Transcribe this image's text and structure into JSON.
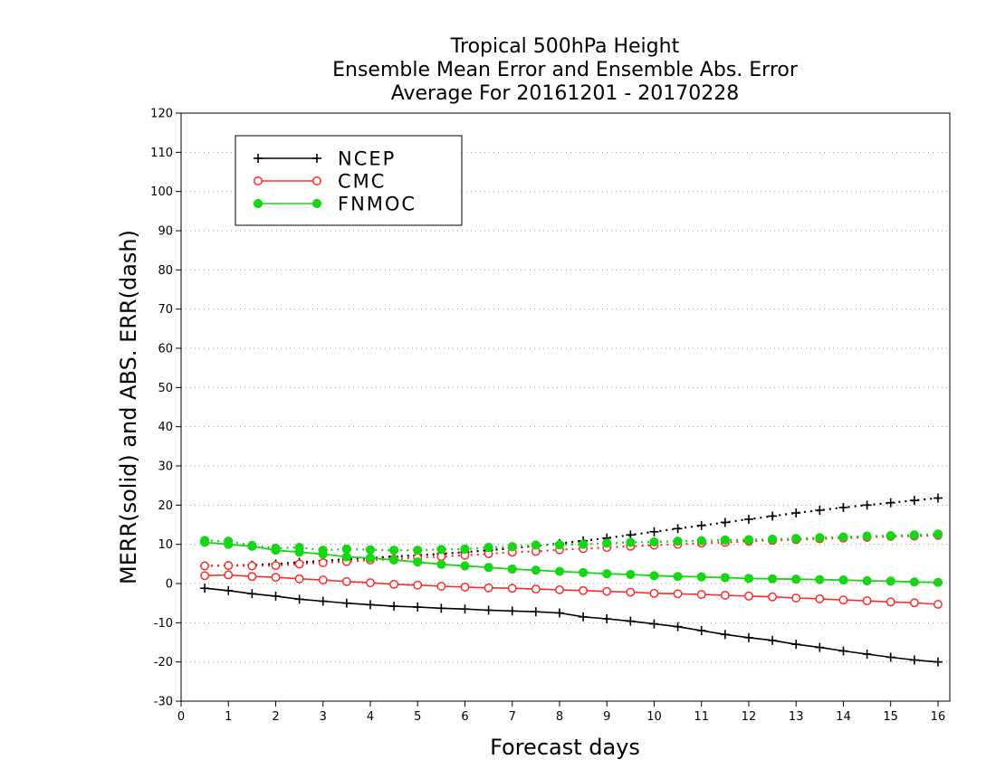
{
  "chart_data": {
    "type": "line",
    "title_lines": [
      "Tropical 500hPa Height",
      "Ensemble Mean Error and Ensemble Abs. Error",
      "Average For 20161201 - 20170228"
    ],
    "xlabel": "Forecast days",
    "ylabel": "MERR(solid) and ABS. ERR(dash)",
    "xlim": [
      0,
      16.25
    ],
    "ylim": [
      -30,
      120
    ],
    "xticks": [
      0,
      1,
      2,
      3,
      4,
      5,
      6,
      7,
      8,
      9,
      10,
      11,
      12,
      13,
      14,
      15,
      16
    ],
    "yticks": [
      -30,
      -20,
      -10,
      0,
      10,
      20,
      30,
      40,
      50,
      60,
      70,
      80,
      90,
      100,
      110,
      120
    ],
    "grid": "horizontal dotted",
    "legend_position": "top-left",
    "x": [
      0.5,
      1,
      1.5,
      2,
      2.5,
      3,
      3.5,
      4,
      4.5,
      5,
      5.5,
      6,
      6.5,
      7,
      7.5,
      8,
      8.5,
      9,
      9.5,
      10,
      10.5,
      11,
      11.5,
      12,
      12.5,
      13,
      13.5,
      14,
      14.5,
      15,
      15.5,
      16
    ],
    "series": [
      {
        "name": "NCEP",
        "color": "#000000",
        "marker": "plus",
        "merr": [
          -1.2,
          -1.8,
          -2.6,
          -3.2,
          -4.0,
          -4.5,
          -5.0,
          -5.4,
          -5.8,
          -6.0,
          -6.3,
          -6.5,
          -6.8,
          -7.0,
          -7.2,
          -7.5,
          -8.5,
          -9.0,
          -9.6,
          -10.3,
          -11.0,
          -12.0,
          -13.0,
          -13.8,
          -14.5,
          -15.5,
          -16.3,
          -17.2,
          -18.0,
          -18.8,
          -19.5,
          -20.0
        ],
        "abs_err": [
          4.5,
          4.6,
          4.7,
          5.0,
          5.4,
          5.8,
          6.2,
          6.5,
          6.9,
          7.2,
          7.6,
          8.0,
          8.5,
          9.0,
          9.6,
          10.2,
          10.9,
          11.6,
          12.4,
          13.2,
          14.0,
          14.8,
          15.6,
          16.4,
          17.2,
          18.0,
          18.7,
          19.4,
          20.0,
          20.6,
          21.2,
          21.8
        ]
      },
      {
        "name": "CMC",
        "color": "#ff2a2a",
        "marker": "open-circle",
        "merr": [
          2.0,
          2.2,
          1.8,
          1.6,
          1.2,
          0.9,
          0.5,
          0.2,
          -0.2,
          -0.4,
          -0.7,
          -0.9,
          -1.1,
          -1.2,
          -1.4,
          -1.6,
          -1.8,
          -2.0,
          -2.2,
          -2.5,
          -2.6,
          -2.8,
          -3.0,
          -3.2,
          -3.4,
          -3.7,
          -3.9,
          -4.2,
          -4.4,
          -4.7,
          -4.9,
          -5.3
        ],
        "abs_err": [
          4.5,
          4.6,
          4.5,
          4.6,
          5.0,
          5.3,
          5.6,
          6.0,
          6.2,
          6.6,
          6.9,
          7.2,
          7.6,
          8.0,
          8.2,
          8.6,
          8.9,
          9.2,
          9.5,
          9.8,
          10.0,
          10.3,
          10.5,
          10.8,
          11.0,
          11.2,
          11.4,
          11.6,
          11.8,
          12.0,
          12.1,
          12.3
        ]
      },
      {
        "name": "FNMOC",
        "color": "#16d616",
        "marker": "filled-circle",
        "merr": [
          10.5,
          10.0,
          9.5,
          8.5,
          8.0,
          7.5,
          6.8,
          6.5,
          6.0,
          5.5,
          4.9,
          4.5,
          4.1,
          3.7,
          3.4,
          3.1,
          2.8,
          2.5,
          2.3,
          2.0,
          1.8,
          1.7,
          1.5,
          1.3,
          1.2,
          1.1,
          1.0,
          0.9,
          0.7,
          0.6,
          0.4,
          0.3
        ],
        "abs_err": [
          11.0,
          10.8,
          9.7,
          9.0,
          9.2,
          8.5,
          8.8,
          8.6,
          8.5,
          8.5,
          8.7,
          8.8,
          9.2,
          9.4,
          9.8,
          9.9,
          10.0,
          10.3,
          10.5,
          10.6,
          10.8,
          10.9,
          11.1,
          11.2,
          11.3,
          11.5,
          11.7,
          11.9,
          12.1,
          12.2,
          12.4,
          12.6
        ]
      }
    ]
  }
}
